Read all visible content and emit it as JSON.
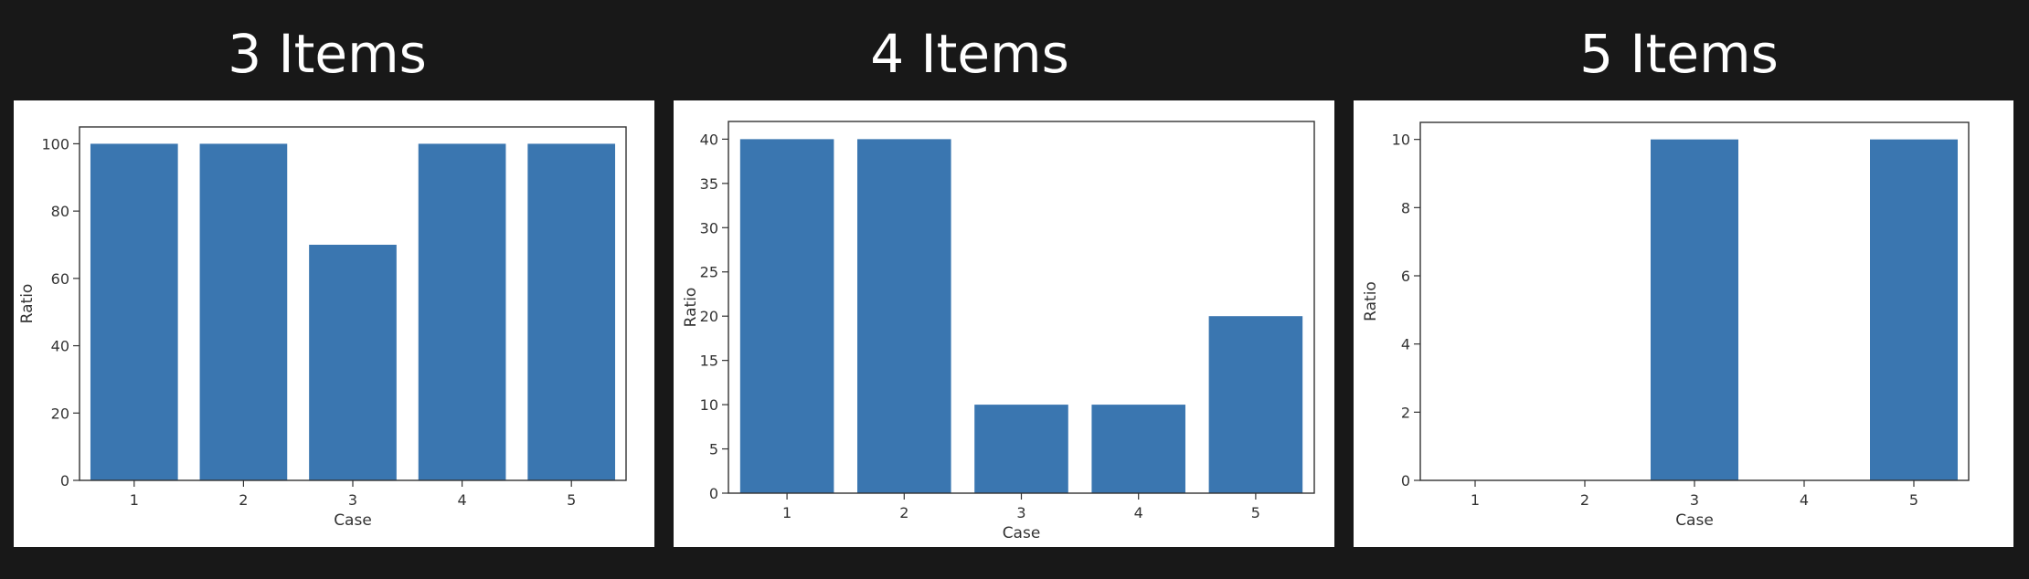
{
  "chart_data": [
    {
      "type": "bar",
      "title": "3 Items",
      "xlabel": "Case",
      "ylabel": "Ratio",
      "categories": [
        "1",
        "2",
        "3",
        "4",
        "5"
      ],
      "values": [
        100,
        100,
        70,
        100,
        100
      ],
      "ylim": [
        0,
        105
      ],
      "yticks": [
        0,
        20,
        40,
        60,
        80,
        100
      ],
      "bar_color": "#3a76b0",
      "grid": false
    },
    {
      "type": "bar",
      "title": "4 Items",
      "xlabel": "Case",
      "ylabel": "Ratio",
      "categories": [
        "1",
        "2",
        "3",
        "4",
        "5"
      ],
      "values": [
        40,
        40,
        10,
        10,
        20
      ],
      "ylim": [
        0,
        42
      ],
      "yticks": [
        0,
        5,
        10,
        15,
        20,
        25,
        30,
        35,
        40
      ],
      "bar_color": "#3a76b0",
      "grid": false
    },
    {
      "type": "bar",
      "title": "5 Items",
      "xlabel": "Case",
      "ylabel": "Ratio",
      "categories": [
        "1",
        "2",
        "3",
        "4",
        "5"
      ],
      "values": [
        0,
        0,
        10,
        0,
        10
      ],
      "ylim": [
        0,
        10.5
      ],
      "yticks": [
        0,
        2,
        4,
        6,
        8,
        10
      ],
      "bar_color": "#3a76b0",
      "grid": false
    }
  ]
}
